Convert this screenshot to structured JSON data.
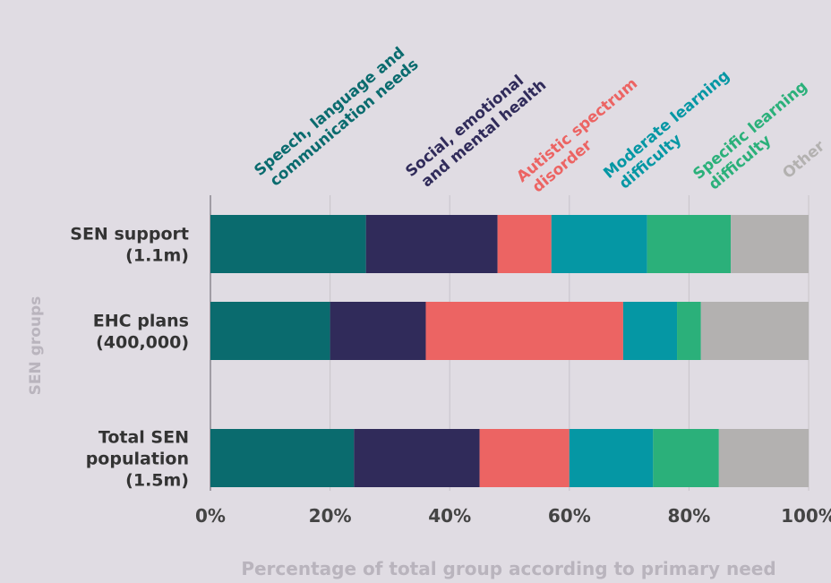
{
  "chart_data": {
    "type": "bar",
    "orientation": "horizontal",
    "stacked": true,
    "xlabel": "Percentage of total group according to primary need",
    "ylabel": "SEN groups",
    "xlim": [
      0,
      100
    ],
    "x_ticks": [
      "0%",
      "20%",
      "40%",
      "60%",
      "80%",
      "100%"
    ],
    "grid": "vertical",
    "legend_placement": "top",
    "categories": [
      [
        "SEN support",
        "(1.1m)"
      ],
      [
        "EHC plans",
        "(400,000)"
      ],
      [
        "Total SEN",
        "population",
        "(1.5m)"
      ]
    ],
    "series": [
      {
        "name": [
          "Speech, language and",
          "communication needs"
        ],
        "color": "#0a6b6e",
        "values": [
          26,
          20,
          24
        ]
      },
      {
        "name": [
          "Social, emotional",
          "and mental health"
        ],
        "color": "#302b5a",
        "values": [
          22,
          16,
          21
        ]
      },
      {
        "name": [
          "Autistic spectrum",
          "disorder"
        ],
        "color": "#ec6463",
        "values": [
          9,
          33,
          15
        ]
      },
      {
        "name": [
          "Moderate learning",
          "difficulty"
        ],
        "color": "#0597a4",
        "values": [
          16,
          9,
          14
        ]
      },
      {
        "name": [
          "Specific learning",
          "difficulty"
        ],
        "color": "#2bb07a",
        "values": [
          14,
          4,
          11
        ]
      },
      {
        "name": [
          "Other"
        ],
        "color": "#b3b1b0",
        "values": [
          13,
          18,
          15
        ]
      }
    ]
  }
}
